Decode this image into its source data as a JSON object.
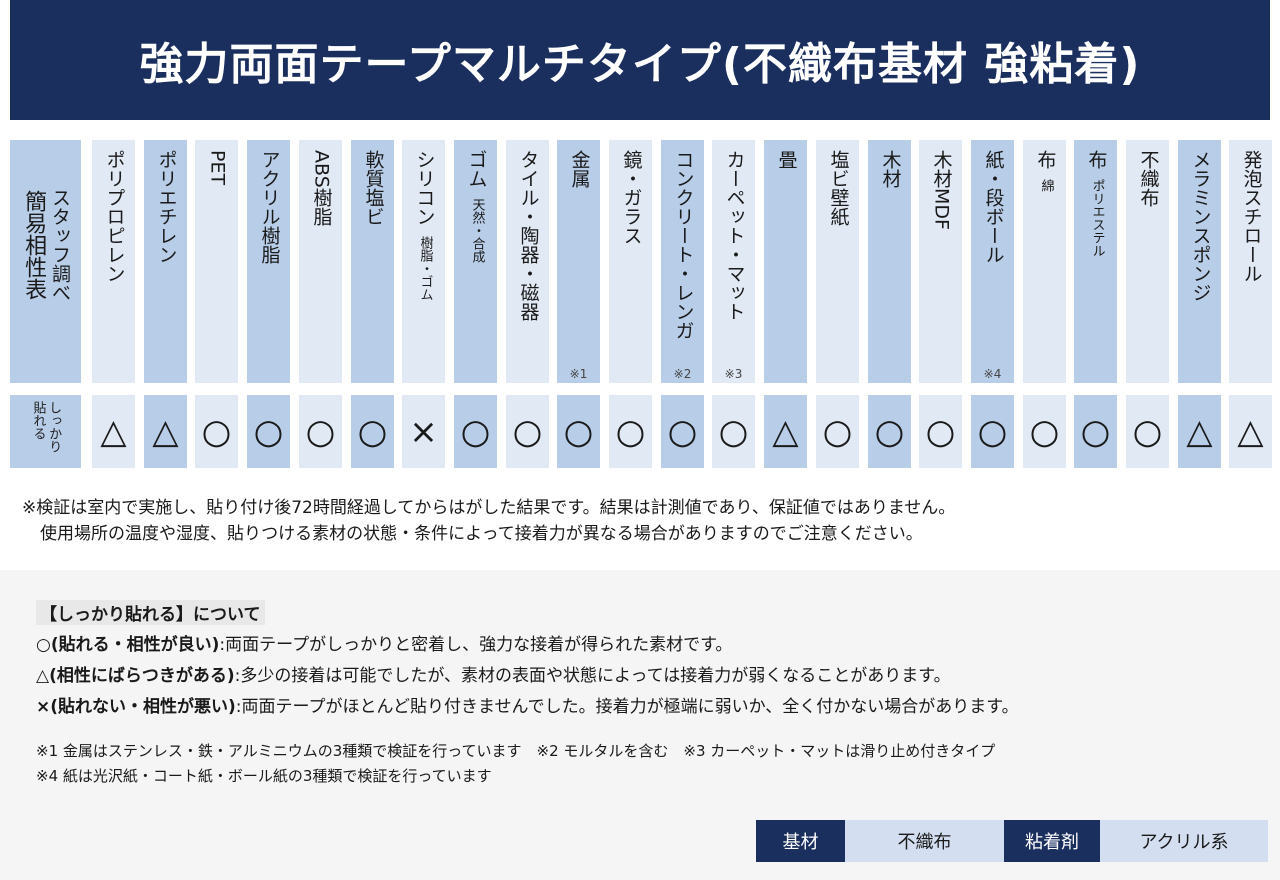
{
  "title": "強力両面テープマルチタイプ(不織布基材 強粘着)",
  "corner": {
    "line1": "スタッフ調べ",
    "line2": "簡易相性表"
  },
  "row_label": {
    "line1": "しっかり",
    "line2": "貼れる"
  },
  "materials": [
    {
      "name": "ポリプロピレン",
      "sub": "",
      "note": "",
      "rating": "△",
      "shade": "light"
    },
    {
      "name": "ポリエチレン",
      "sub": "",
      "note": "",
      "rating": "△",
      "shade": "dark"
    },
    {
      "name": "PET",
      "sub": "",
      "note": "",
      "rating": "○",
      "shade": "light"
    },
    {
      "name": "アクリル樹脂",
      "sub": "",
      "note": "",
      "rating": "○",
      "shade": "dark"
    },
    {
      "name": "ABS樹脂",
      "sub": "",
      "note": "",
      "rating": "○",
      "shade": "light"
    },
    {
      "name": "軟質塩ビ",
      "sub": "",
      "note": "",
      "rating": "○",
      "shade": "dark"
    },
    {
      "name": "シリコン",
      "sub": "樹脂・ゴム",
      "note": "",
      "rating": "×",
      "shade": "light"
    },
    {
      "name": "ゴム",
      "sub": "天然・合成",
      "note": "",
      "rating": "○",
      "shade": "dark"
    },
    {
      "name": "タイル・陶器・磁器",
      "sub": "",
      "note": "",
      "rating": "○",
      "shade": "light"
    },
    {
      "name": "金属",
      "sub": "",
      "note": "※1",
      "rating": "○",
      "shade": "dark"
    },
    {
      "name": "鏡・ガラス",
      "sub": "",
      "note": "",
      "rating": "○",
      "shade": "light"
    },
    {
      "name": "コンクリート・レンガ",
      "sub": "",
      "note": "※2",
      "rating": "○",
      "shade": "dark"
    },
    {
      "name": "カーペット・マット",
      "sub": "",
      "note": "※3",
      "rating": "○",
      "shade": "light"
    },
    {
      "name": "畳",
      "sub": "",
      "note": "",
      "rating": "△",
      "shade": "dark"
    },
    {
      "name": "塩ビ壁紙",
      "sub": "",
      "note": "",
      "rating": "○",
      "shade": "light"
    },
    {
      "name": "木材",
      "sub": "",
      "note": "",
      "rating": "○",
      "shade": "dark"
    },
    {
      "name": "木材MDF",
      "sub": "",
      "note": "",
      "rating": "○",
      "shade": "light"
    },
    {
      "name": "紙・段ボール",
      "sub": "",
      "note": "※4",
      "rating": "○",
      "shade": "dark"
    },
    {
      "name": "布",
      "sub": "綿",
      "note": "",
      "rating": "○",
      "shade": "light"
    },
    {
      "name": "布",
      "sub": "ポリエステル",
      "note": "",
      "rating": "○",
      "shade": "dark"
    },
    {
      "name": "不織布",
      "sub": "",
      "note": "",
      "rating": "○",
      "shade": "light"
    },
    {
      "name": "メラミンスポンジ",
      "sub": "",
      "note": "",
      "rating": "△",
      "shade": "dark"
    },
    {
      "name": "発泡スチロール",
      "sub": "",
      "note": "",
      "rating": "△",
      "shade": "light"
    }
  ],
  "notes": {
    "line1": "※検証は室内で実施し、貼り付け後72時間経過してからはがした結果です。結果は計測値であり、保証値ではありません。",
    "line2": "使用場所の温度や湿度、貼りつける素材の状態・条件によって接着力が異なる場合がありますのでご注意ください。"
  },
  "legend": {
    "title": "【しっかり貼れる】について",
    "good_label": "○(貼れる・相性が良い)",
    "good_text": ":両面テープがしっかりと密着し、強力な接着が得られた素材です。",
    "mid_label": "△(相性にばらつきがある)",
    "mid_text": ":多少の接着は可能でしたが、素材の表面や状態によっては接着力が弱くなることがあります。",
    "bad_label": "×(貼れない・相性が悪い)",
    "bad_text": ":両面テープがほとんど貼り付きませんでした。接着力が極端に弱いか、全く付かない場合があります。"
  },
  "footnotes": {
    "line1": "※1 金属はステンレス・鉄・アルミニウムの3種類で検証を行っています　※2 モルタルを含む　※3 カーペット・マットは滑り止め付きタイプ",
    "line2": "※4 紙は光沢紙・コート紙・ボール紙の3種類で検証を行っています"
  },
  "spec": {
    "base_label": "基材",
    "base_value": "不織布",
    "adhesive_label": "粘着剤",
    "adhesive_value": "アクリル系"
  },
  "colors": {
    "navy": "#1b2f5f",
    "dark_cell": "#b8cde8",
    "light_cell": "#e1e9f5"
  }
}
